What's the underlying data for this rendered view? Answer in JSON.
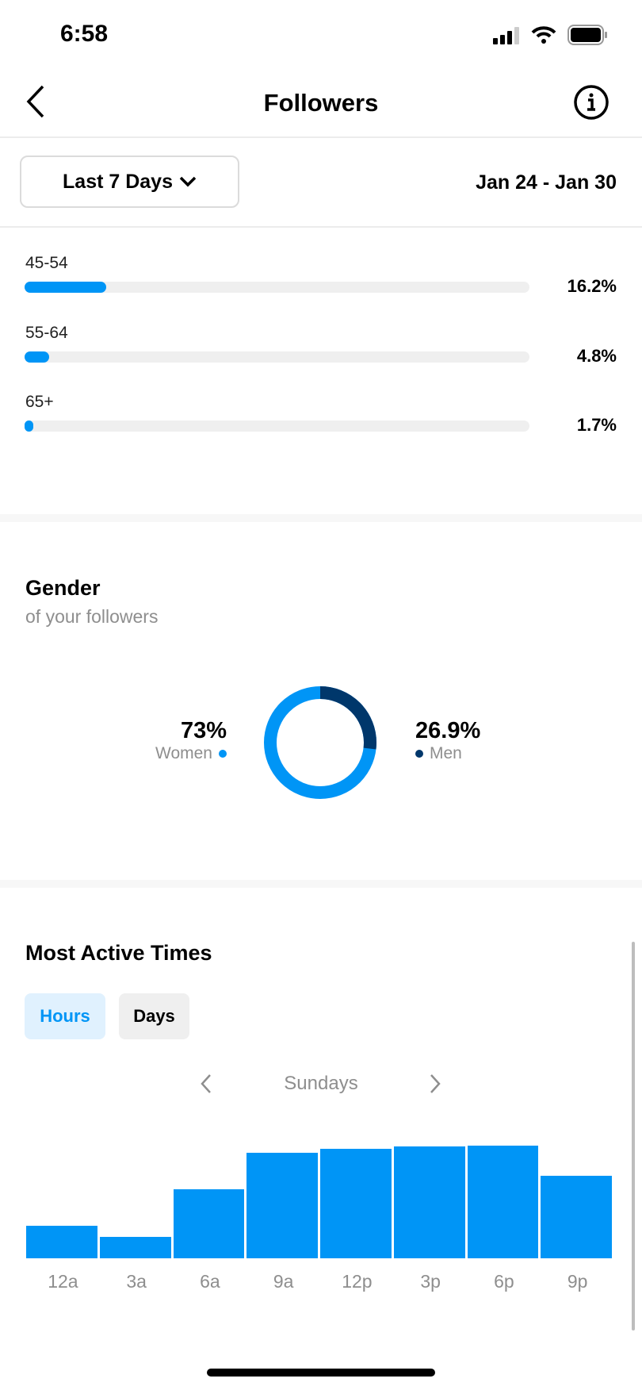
{
  "status": {
    "time": "6:58"
  },
  "header": {
    "title": "Followers"
  },
  "filter": {
    "period": "Last 7 Days",
    "date_range": "Jan 24 - Jan 30"
  },
  "age": [
    {
      "label": "45-54",
      "percent": 16.2,
      "text": "16.2%"
    },
    {
      "label": "55-64",
      "percent": 4.8,
      "text": "4.8%"
    },
    {
      "label": "65+",
      "percent": 1.7,
      "text": "1.7%"
    }
  ],
  "gender": {
    "title": "Gender",
    "subtitle": "of your followers",
    "women": {
      "value": "73%",
      "label": "Women",
      "percent": 73.1
    },
    "men": {
      "value": "26.9%",
      "label": "Men",
      "percent": 26.9
    }
  },
  "colors": {
    "accent": "#0095f6",
    "men": "#00376b",
    "track": "#efefef"
  },
  "active": {
    "title": "Most Active Times",
    "tabs": [
      "Hours",
      "Days"
    ],
    "selected_tab": "Hours",
    "day": "Sundays"
  },
  "chart_data": {
    "type": "bar",
    "categories": [
      "12a",
      "3a",
      "6a",
      "9a",
      "12p",
      "3p",
      "6p",
      "9p"
    ],
    "values": [
      29,
      19,
      61,
      94,
      97,
      99,
      100,
      73
    ]
  }
}
